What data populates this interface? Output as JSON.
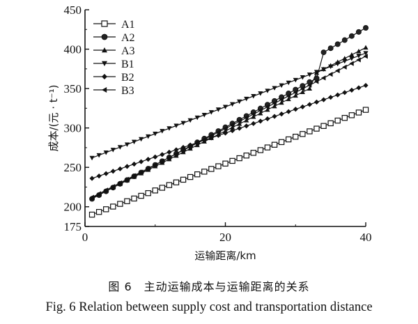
{
  "chart_data": {
    "type": "line",
    "xlabel": "运输距离/km",
    "ylabel": "成本/(元 · t⁻¹)",
    "xlim": [
      0,
      40
    ],
    "ylim": [
      175,
      450
    ],
    "x_ticks": [
      "0",
      "20",
      "40"
    ],
    "y_ticks": [
      "175",
      "200",
      "250",
      "300",
      "350",
      "400",
      "450"
    ],
    "legend_position": "top-left",
    "series": [
      {
        "name": "A1",
        "marker": "square-open",
        "x": [
          1,
          40
        ],
        "y": [
          190,
          323
        ]
      },
      {
        "name": "A2",
        "marker": "circle",
        "x": [
          1,
          33,
          34,
          40
        ],
        "y": [
          210,
          363,
          396,
          427
        ]
      },
      {
        "name": "A3",
        "marker": "triangle-up",
        "x": [
          1,
          32,
          33,
          40
        ],
        "y": [
          211,
          350,
          370,
          402
        ]
      },
      {
        "name": "B1",
        "marker": "triangle-down",
        "x": [
          1,
          40
        ],
        "y": [
          262,
          395
        ]
      },
      {
        "name": "B2",
        "marker": "diamond",
        "x": [
          1,
          40
        ],
        "y": [
          236,
          354
        ]
      },
      {
        "name": "B3",
        "marker": "triangle-left",
        "x": [
          1,
          40
        ],
        "y": [
          212,
          391
        ]
      }
    ]
  },
  "caption": {
    "chinese": "图 6　主动运输成本与运输距离的关系",
    "english": "Fig. 6   Relation between supply cost and transportation distance"
  }
}
